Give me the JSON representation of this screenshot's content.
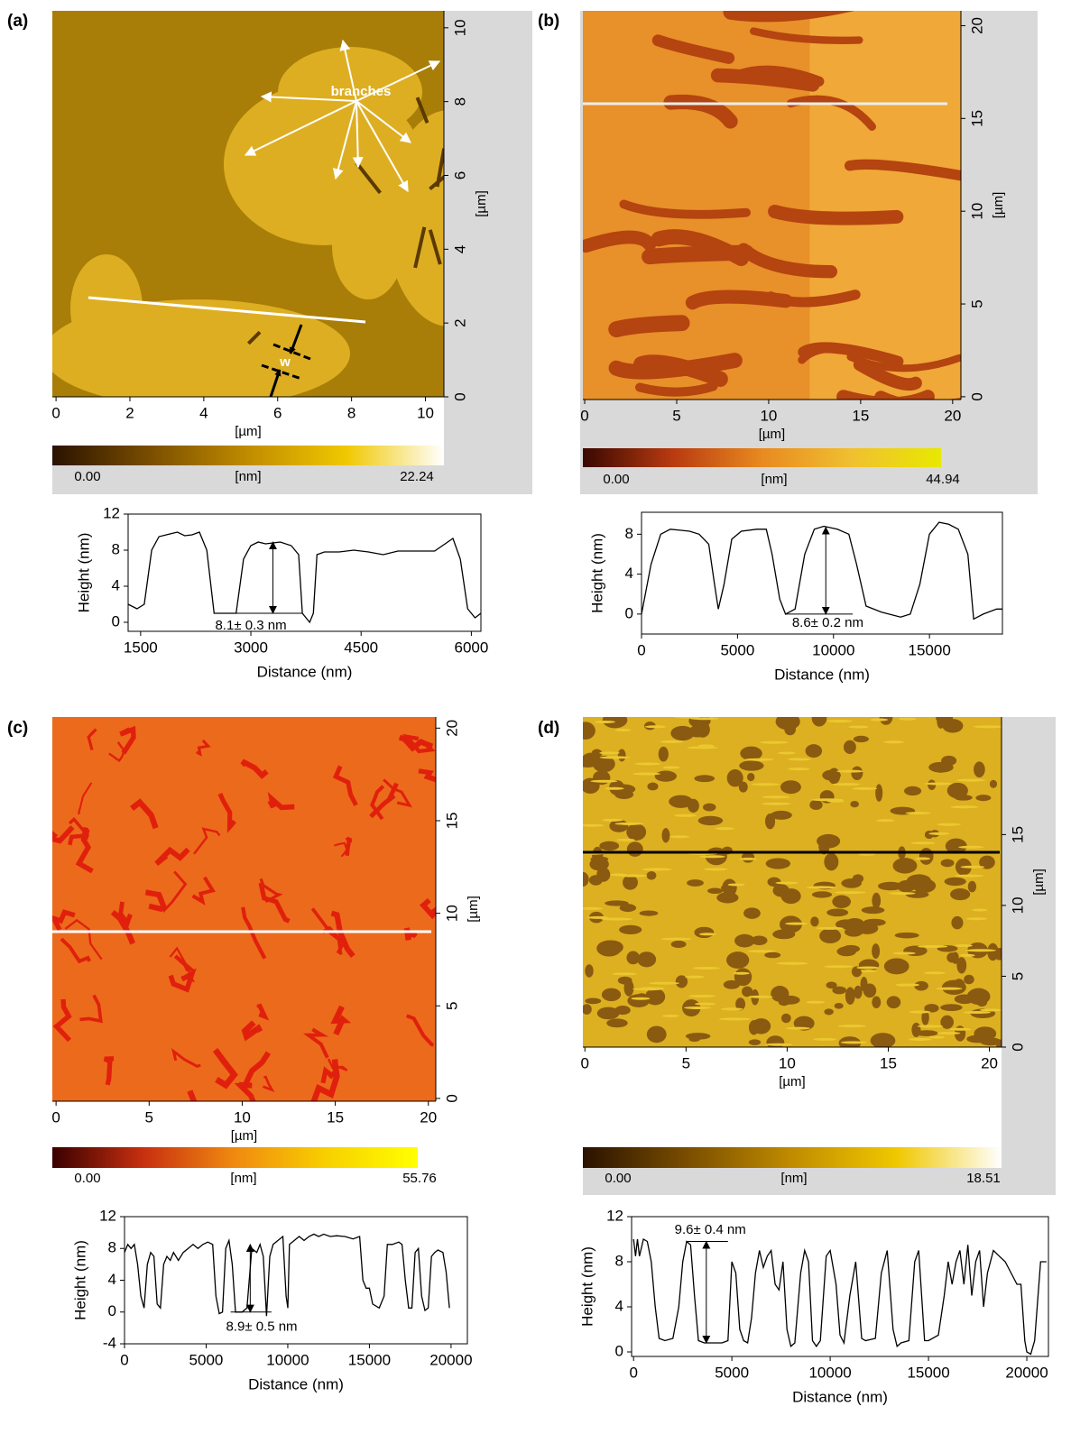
{
  "chart_data": [
    {
      "type": "image",
      "label": "(a)",
      "xlabel": "[µm]",
      "ylabel": "[µm]",
      "xlim": [
        -0.1,
        10.5
      ],
      "xticks": [
        0,
        2,
        4,
        6,
        8,
        10
      ],
      "ylim": [
        0,
        10.46
      ],
      "yticks": [
        0,
        2,
        4,
        6,
        8,
        10
      ],
      "colorbar_min": "0.00",
      "colorbar_unit": "[nm]",
      "colorbar_max": "22.24",
      "colorbar_colors": [
        "#2a1200",
        "#7a4e00",
        "#c08c00",
        "#f0c800",
        "#ffffff"
      ],
      "annotations": [
        "branches",
        "w"
      ]
    },
    {
      "type": "line",
      "xlabel": "Distance (nm)",
      "ylabel": "Height (nm)",
      "xlim": [
        1330,
        6130
      ],
      "xticks": [
        1500,
        3000,
        4500,
        6000
      ],
      "ylim": [
        -1,
        12
      ],
      "yticks": [
        0,
        4,
        8,
        12
      ],
      "color": "#000000",
      "annotation": "8.1± 0.3 nm",
      "x": [
        1330,
        1450,
        1550,
        1650,
        1750,
        1900,
        2000,
        2100,
        2200,
        2300,
        2400,
        2500,
        2800,
        2900,
        3000,
        3100,
        3200,
        3300,
        3400,
        3550,
        3650,
        3700,
        3800,
        3850,
        3900,
        4000,
        4200,
        4400,
        4600,
        4800,
        5000,
        5500,
        5750,
        5850,
        5950,
        6050,
        6130
      ],
      "values": [
        2,
        1.5,
        2,
        8,
        9.5,
        9.8,
        10,
        9.6,
        9.7,
        10,
        8,
        1,
        1,
        7,
        8.5,
        8.9,
        8.7,
        8.8,
        8.9,
        8.5,
        7.5,
        1,
        0,
        1,
        7.5,
        7.8,
        7.8,
        8,
        7.8,
        7.5,
        7.9,
        7.9,
        9.3,
        7,
        1.5,
        0.5,
        1
      ]
    },
    {
      "type": "image",
      "label": "(b)",
      "xlabel": "[µm]",
      "ylabel": "[µm]",
      "xlim": [
        -0.1,
        20.45
      ],
      "xticks": [
        0,
        5,
        10,
        15,
        20
      ],
      "ylim": [
        -0.15,
        20.8
      ],
      "yticks": [
        0,
        5,
        10,
        15,
        20
      ],
      "colorbar_min": "0.00",
      "colorbar_unit": "[nm]",
      "colorbar_max": "44.94",
      "colorbar_colors": [
        "#3a0800",
        "#b83a10",
        "#e88a20",
        "#f0c030",
        "#e8e800"
      ]
    },
    {
      "type": "line",
      "xlabel": "Distance (nm)",
      "ylabel": "Height (nm)",
      "xlim": [
        0,
        18800
      ],
      "xticks": [
        0,
        5000,
        10000,
        15000
      ],
      "ylim": [
        -2,
        10.2
      ],
      "yticks": [
        0,
        4,
        8
      ],
      "color": "#000000",
      "annotation": "8.6± 0.2 nm",
      "x": [
        0,
        500,
        1000,
        1500,
        2000,
        2500,
        3000,
        3500,
        3800,
        4000,
        4300,
        4700,
        5200,
        6000,
        6500,
        6800,
        7200,
        7500,
        8000,
        8500,
        9000,
        9500,
        10200,
        10800,
        11200,
        11700,
        12500,
        13500,
        14000,
        14500,
        15000,
        15500,
        16000,
        16500,
        17000,
        17300,
        17800,
        18500,
        18800
      ],
      "values": [
        0,
        5,
        8,
        8.5,
        8.4,
        8.3,
        8,
        7,
        3,
        0.5,
        3,
        7.5,
        8.3,
        8.5,
        8.5,
        6,
        1.5,
        0,
        0.5,
        6,
        8.5,
        8.8,
        8.5,
        8,
        5,
        0.8,
        0.2,
        -0.3,
        0,
        3,
        8,
        9.2,
        9,
        8.5,
        6,
        -0.5,
        0,
        0.5,
        0.5
      ]
    },
    {
      "type": "image",
      "label": "(c)",
      "xlabel": "[µm]",
      "ylabel": "[µm]",
      "xlim": [
        -0.2,
        20.4
      ],
      "xticks": [
        0,
        5,
        10,
        15,
        20
      ],
      "ylim": [
        -0.15,
        20.6
      ],
      "yticks": [
        0,
        5,
        10,
        15,
        20
      ],
      "colorbar_min": "0.00",
      "colorbar_unit": "[nm]",
      "colorbar_max": "55.76",
      "colorbar_colors": [
        "#3a0000",
        "#c83010",
        "#f08a10",
        "#f8d000",
        "#ffff00"
      ]
    },
    {
      "type": "line",
      "xlabel": "Distance (nm)",
      "ylabel": "Height (nm)",
      "xlim": [
        0,
        21000
      ],
      "xticks": [
        0,
        5000,
        10000,
        15000,
        20000
      ],
      "ylim": [
        -4,
        12
      ],
      "yticks": [
        -4,
        0,
        4,
        8,
        12
      ],
      "color": "#000000",
      "annotation": "8.9± 0.5 nm",
      "x": [
        0,
        200,
        400,
        600,
        800,
        1000,
        1200,
        1400,
        1600,
        1800,
        2000,
        2200,
        2400,
        2600,
        2800,
        3000,
        3300,
        3600,
        3900,
        4200,
        4500,
        4800,
        5100,
        5400,
        5600,
        5800,
        6000,
        6200,
        6400,
        6600,
        6800,
        7200,
        7500,
        7800,
        8100,
        8300,
        8500,
        8700,
        8900,
        9100,
        9400,
        9700,
        9900,
        10000,
        10100,
        10400,
        10700,
        11000,
        11300,
        11600,
        11900,
        12200,
        12600,
        13000,
        13500,
        14000,
        14400,
        14600,
        14800,
        15000,
        15200,
        15600,
        15900,
        16100,
        16400,
        16800,
        17000,
        17200,
        17400,
        17600,
        17800,
        18000,
        18200,
        18400,
        18600,
        18800,
        19000,
        19200,
        19500,
        19700,
        19900
      ],
      "values": [
        7.5,
        8.5,
        8,
        8.5,
        6,
        2,
        0.5,
        6,
        7.5,
        7,
        1,
        0.5,
        6,
        7,
        6.5,
        7.5,
        6.5,
        7.5,
        8,
        8.5,
        8,
        8.5,
        8.8,
        8.5,
        2,
        -0.2,
        0,
        8,
        9,
        6,
        0,
        0,
        0.5,
        8,
        7.5,
        8.5,
        7,
        -0.5,
        7,
        8.5,
        9,
        9.5,
        2,
        0.5,
        8.5,
        9,
        9.5,
        9,
        9.5,
        9.8,
        9.5,
        9.8,
        9.5,
        9.6,
        9.5,
        9.2,
        9.5,
        4,
        3,
        3,
        1,
        0.5,
        2,
        8.5,
        8.5,
        8.8,
        8.5,
        4,
        0.5,
        0.5,
        7.5,
        8,
        2,
        0.2,
        0.5,
        7,
        7.5,
        7.8,
        7.5,
        5,
        0.5
      ]
    },
    {
      "type": "image",
      "label": "(d)",
      "xlabel": "[µm]",
      "ylabel": "[µm]",
      "xlim": [
        -0.1,
        20.6
      ],
      "xticks": [
        0,
        5,
        10,
        15,
        20
      ],
      "ylim": [
        0,
        23.3
      ],
      "yticks": [
        0,
        5,
        10,
        15
      ],
      "colorbar_min": "0.00",
      "colorbar_unit": "[nm]",
      "colorbar_max": "18.51",
      "colorbar_colors": [
        "#2a1200",
        "#7a4e00",
        "#c08c00",
        "#f0c800",
        "#ffffff"
      ]
    },
    {
      "type": "line",
      "xlabel": "Distance (nm)",
      "ylabel": "Height (nm)",
      "xlim": [
        -100,
        21100
      ],
      "xticks": [
        0,
        5000,
        10000,
        15000,
        20000
      ],
      "ylim": [
        -0.4,
        12
      ],
      "yticks": [
        0,
        4,
        8,
        12
      ],
      "color": "#000000",
      "annotation": "9.6± 0.4 nm",
      "x": [
        0,
        100,
        200,
        300,
        500,
        700,
        900,
        1100,
        1300,
        1600,
        2000,
        2300,
        2500,
        2700,
        2900,
        3100,
        3300,
        3600,
        4000,
        4500,
        4800,
        5000,
        5200,
        5400,
        5600,
        5800,
        6000,
        6200,
        6400,
        6600,
        6800,
        7000,
        7200,
        7400,
        7600,
        7800,
        8000,
        8200,
        8500,
        8700,
        8900,
        9100,
        9300,
        9500,
        9800,
        10000,
        10300,
        10500,
        10700,
        11000,
        11300,
        11600,
        11800,
        12300,
        12600,
        12900,
        13200,
        13400,
        13600,
        14000,
        14300,
        14500,
        14800,
        15000,
        15500,
        15800,
        16000,
        16200,
        16400,
        16600,
        16800,
        17000,
        17200,
        17400,
        17600,
        17800,
        18000,
        18300,
        18600,
        18900,
        19200,
        19500,
        19700,
        19900,
        20000,
        20200,
        20400,
        20700,
        21000
      ],
      "values": [
        10,
        8.5,
        10,
        8.5,
        10,
        9.8,
        8,
        4,
        1.2,
        1,
        1.2,
        4,
        8,
        9.8,
        9.5,
        5,
        1,
        0.8,
        0.8,
        0.8,
        1,
        8,
        7,
        2,
        1,
        0.8,
        3,
        7,
        9,
        7.5,
        8.5,
        9,
        6,
        5.5,
        8,
        2,
        0.5,
        0.8,
        7,
        9,
        8,
        1,
        0.5,
        1,
        8.5,
        9,
        6,
        1.5,
        0.8,
        5,
        8,
        1.2,
        1,
        1.2,
        7,
        9,
        2,
        0.5,
        0.8,
        1,
        8,
        9,
        1,
        1,
        1.5,
        5,
        8,
        6,
        8,
        9,
        6,
        9.5,
        5,
        8,
        9,
        4,
        7,
        9,
        8.5,
        8,
        7,
        6,
        6,
        1,
        0,
        -0.2,
        1,
        8,
        8
      ]
    }
  ]
}
